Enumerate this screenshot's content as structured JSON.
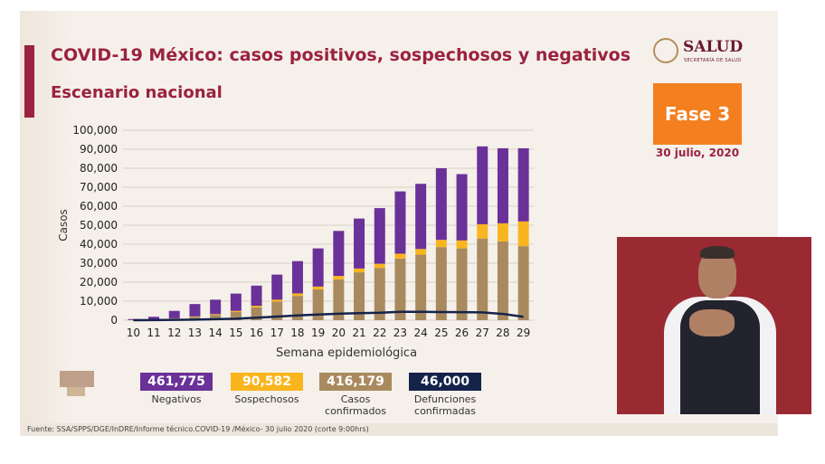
{
  "header": {
    "title": "COVID-19 México: casos positivos, sospechosos y negativos",
    "subtitle": "Escenario nacional"
  },
  "logo": {
    "text": "SALUD",
    "sub": "SECRETARÍA DE SALUD",
    "icon": "national-seal-icon"
  },
  "phase": {
    "label": "Fase 3",
    "date": "30 julio, 2020",
    "color": "#f47f1f"
  },
  "legend": [
    {
      "value": "461,775",
      "label": "Negativos",
      "color": "#6a3199"
    },
    {
      "value": "90,582",
      "label": "Sospechosos",
      "color": "#f9b51e"
    },
    {
      "value": "416,179",
      "label": "Casos confirmados",
      "color": "#a98a5f"
    },
    {
      "value": "46,000",
      "label": "Defunciones confirmadas",
      "color": "#15234a"
    }
  ],
  "source": "Fuente: SSA/SPPS/DGE/InDRE/Informe técnico.COVID-19 /México- 30 julio 2020 (corte 9:00hrs)",
  "chart_data": {
    "type": "bar",
    "stacked": true,
    "title": "",
    "xlabel": "Semana epidemiológica",
    "ylabel": "Casos",
    "ylim": [
      0,
      100000
    ],
    "yticks": [
      "0",
      "10,000",
      "20,000",
      "30,000",
      "40,000",
      "50,000",
      "60,000",
      "70,000",
      "80,000",
      "90,000",
      "100,000"
    ],
    "categories": [
      "10",
      "11",
      "12",
      "13",
      "14",
      "15",
      "16",
      "17",
      "18",
      "19",
      "20",
      "21",
      "22",
      "23",
      "24",
      "25",
      "26",
      "27",
      "28",
      "29"
    ],
    "series": [
      {
        "name": "Casos confirmados",
        "color": "#a98a5f",
        "values": [
          100,
          300,
          900,
          1800,
          2800,
          4300,
          6800,
          9800,
          12800,
          16200,
          21500,
          25200,
          27500,
          32500,
          34500,
          38500,
          37800,
          43000,
          41500,
          39000
        ]
      },
      {
        "name": "Sospechosos",
        "color": "#f9b51e",
        "values": [
          0,
          0,
          100,
          200,
          400,
          600,
          800,
          1000,
          1300,
          1500,
          1800,
          2000,
          2200,
          2500,
          3000,
          3800,
          4200,
          7500,
          9500,
          13000
        ]
      },
      {
        "name": "Negativos",
        "color": "#6a3199",
        "values": [
          500,
          1500,
          3900,
          6500,
          7600,
          9100,
          10600,
          13200,
          17000,
          20100,
          23700,
          26300,
          29300,
          32800,
          34300,
          37700,
          34900,
          41000,
          39500,
          38500
        ]
      }
    ],
    "line": {
      "name": "Defunciones confirmadas",
      "color": "#15234a",
      "values": [
        0,
        30,
        150,
        300,
        550,
        800,
        1300,
        1900,
        2500,
        3000,
        3400,
        3700,
        3900,
        4400,
        4400,
        4300,
        4200,
        4100,
        3300,
        1800
      ]
    }
  }
}
